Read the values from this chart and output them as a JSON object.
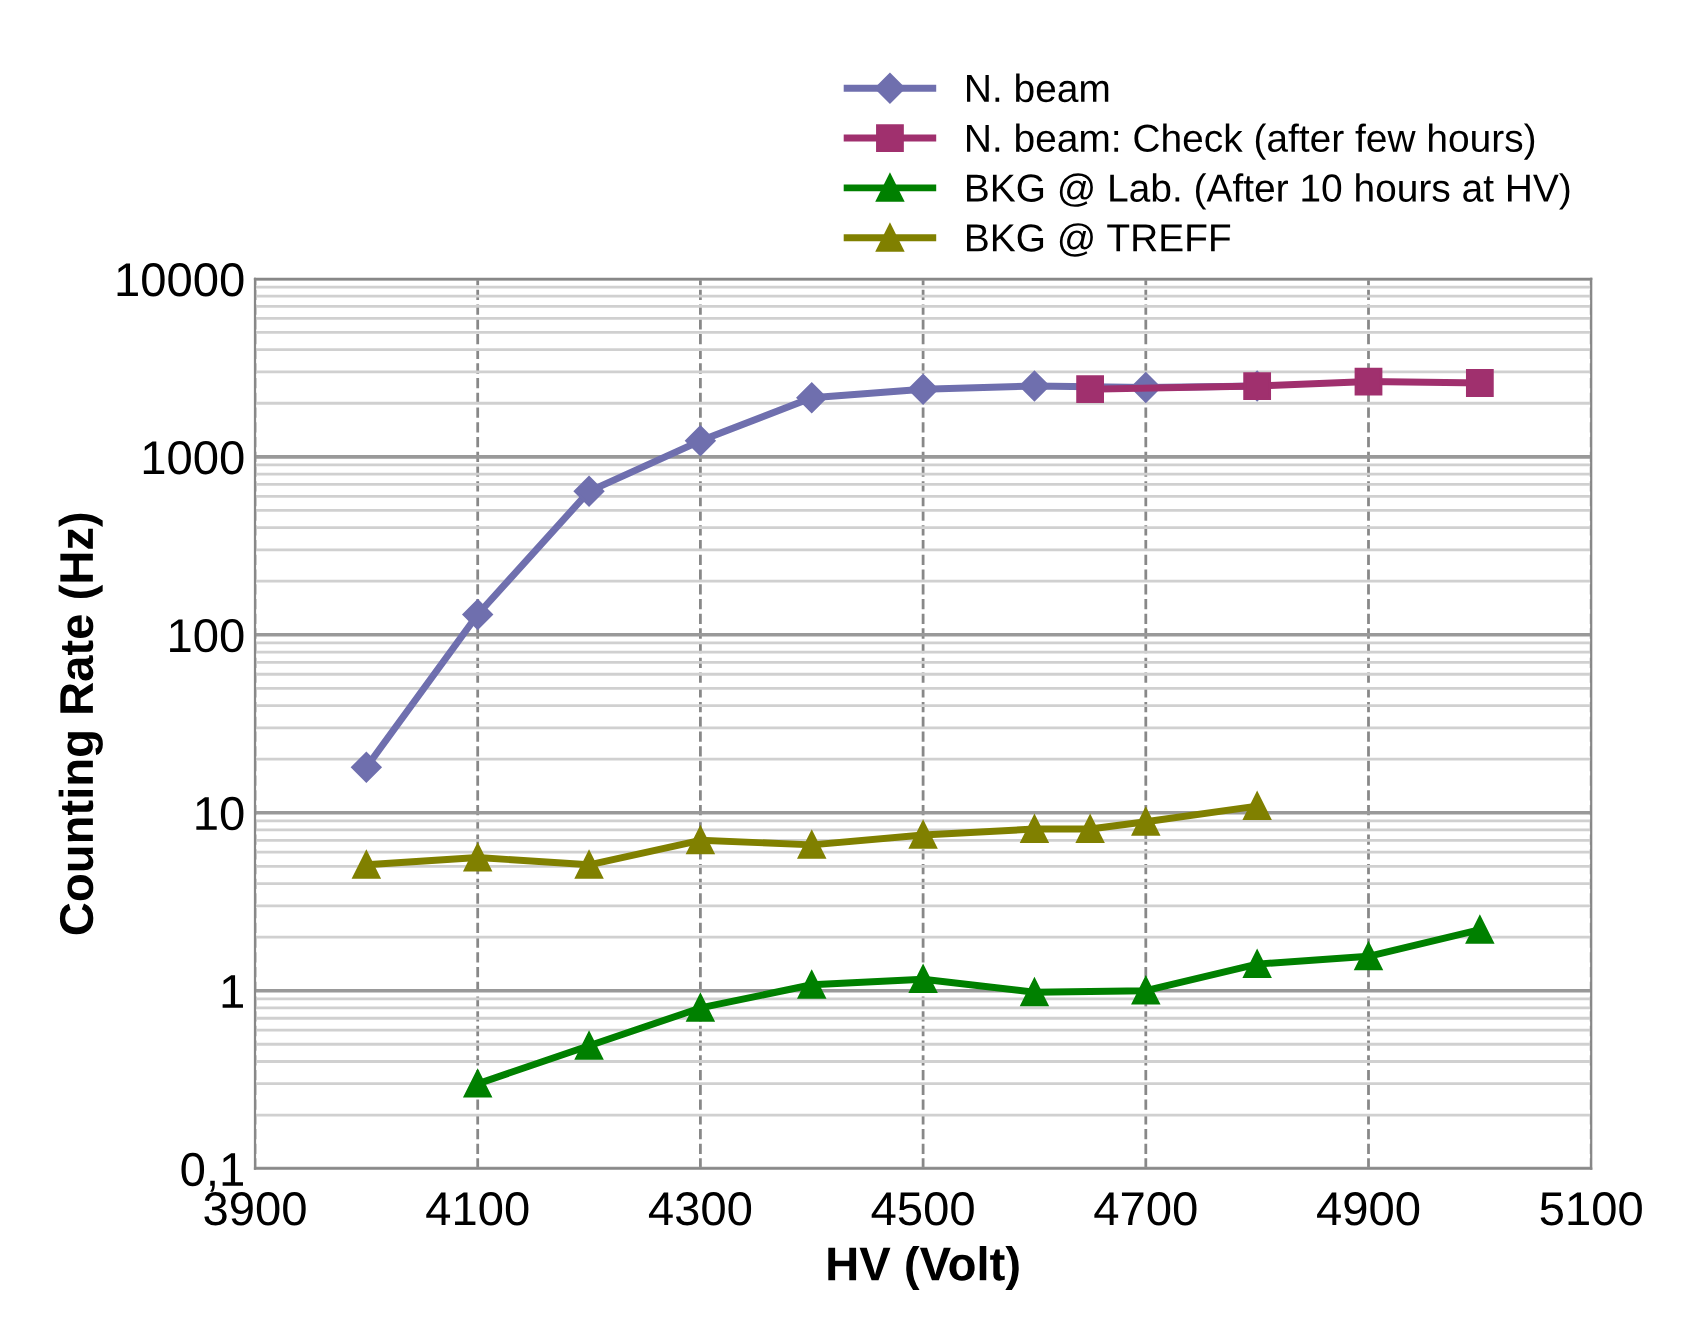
{
  "chart_data": {
    "type": "line",
    "xlabel": "HV (Volt)",
    "ylabel": "Counting Rate (Hz)",
    "log": "y",
    "grid": true,
    "legend": "top right",
    "xlim": [
      3900,
      5100
    ],
    "xticks": [
      3900,
      4100,
      4300,
      4500,
      4700,
      4900,
      5100
    ],
    "ylim": [
      0.1,
      10000
    ],
    "yticks": [
      {
        "value": 0.1,
        "label": "0,1"
      },
      1,
      10,
      100,
      1000,
      10000
    ],
    "series": [
      {
        "name": "N. beam",
        "color": "#6f6fae",
        "marker": "diamond",
        "x": [
          4000,
          4100,
          4200,
          4300,
          4400,
          4500,
          4600,
          4700,
          4800
        ],
        "values": [
          18,
          130,
          640,
          1230,
          2150,
          2400,
          2500,
          2450,
          2500
        ]
      },
      {
        "name": "N. beam: Check (after few hours)",
        "color": "#a0306e",
        "marker": "square",
        "x": [
          4650,
          4800,
          4900,
          5000
        ],
        "values": [
          2400,
          2500,
          2650,
          2600
        ]
      },
      {
        "name": "BKG @ Lab. (After 10 hours at HV)",
        "color": "#008000",
        "marker": "triangle",
        "x": [
          4100,
          4200,
          4300,
          4400,
          4500,
          4600,
          4700,
          4800,
          4900,
          5000
        ],
        "values": [
          0.3,
          0.49,
          0.8,
          1.08,
          1.16,
          0.98,
          1.0,
          1.41,
          1.56,
          2.2
        ]
      },
      {
        "name": "BKG @ TREFF",
        "color": "#808000",
        "marker": "triangle",
        "x": [
          4000,
          4100,
          4200,
          4300,
          4400,
          4500,
          4600,
          4650,
          4700,
          4800
        ],
        "values": [
          5.1,
          5.6,
          5.1,
          7.0,
          6.6,
          7.5,
          8.1,
          8.1,
          8.9,
          10.9
        ]
      }
    ]
  }
}
